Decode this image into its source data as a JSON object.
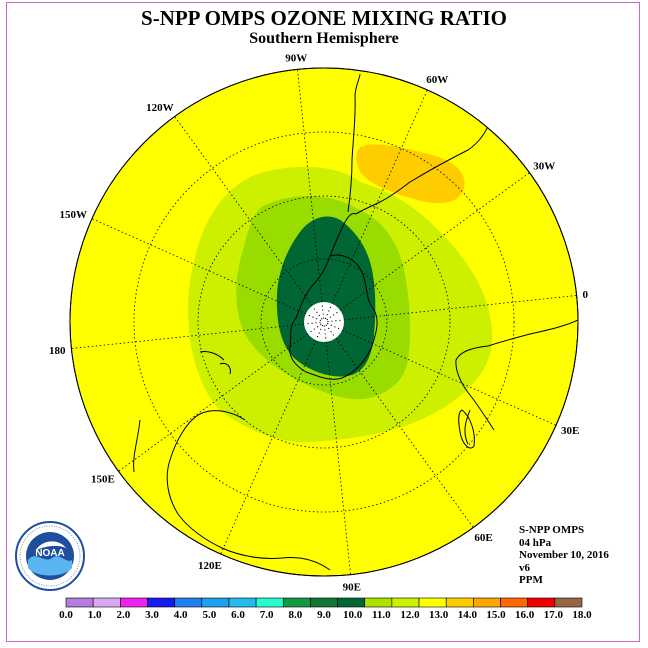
{
  "title": "S-NPP OMPS OZONE MIXING RATIO",
  "subtitle": "Southern Hemisphere",
  "longitude_labels": [
    "0",
    "30E",
    "60E",
    "90E",
    "120E",
    "150E",
    "180",
    "150W",
    "120W",
    "90W",
    "60W",
    "30W"
  ],
  "info": {
    "instrument": "S-NPP OMPS",
    "level": "04 hPa",
    "date": "November 10, 2016",
    "version": "v6",
    "units": "PPM"
  },
  "colorbar": {
    "ticks": [
      "0.0",
      "1.0",
      "2.0",
      "3.0",
      "4.0",
      "5.0",
      "6.0",
      "7.0",
      "8.0",
      "9.0",
      "10.0",
      "11.0",
      "12.0",
      "13.0",
      "14.0",
      "15.0",
      "16.0",
      "17.0",
      "18.0"
    ],
    "colors": [
      "#b57bdf",
      "#d9a8f2",
      "#ee22ee",
      "#1a1aee",
      "#1f7fef",
      "#1f9fef",
      "#22bbee",
      "#22ffcc",
      "#119944",
      "#117733",
      "#006633",
      "#aee000",
      "#ccf000",
      "#ffff00",
      "#ffcc00",
      "#ffa500",
      "#ff6600",
      "#ee0000",
      "#996644"
    ]
  },
  "colors": {
    "ozone_12_13": "#ffff00",
    "ozone_11_12": "#ccf000",
    "ozone_10_11": "#99dd00",
    "ozone_9_10": "#006633",
    "ozone_13_14": "#ffcc00",
    "pole_mask": "#ffffff",
    "frame": "#cc66cc"
  },
  "logo": {
    "name": "NOAA",
    "ring_text": "NATIONAL OCEANIC AND ATMOSPHERIC ADMINISTRATION · U.S. DEPARTMENT OF COMMERCE"
  }
}
